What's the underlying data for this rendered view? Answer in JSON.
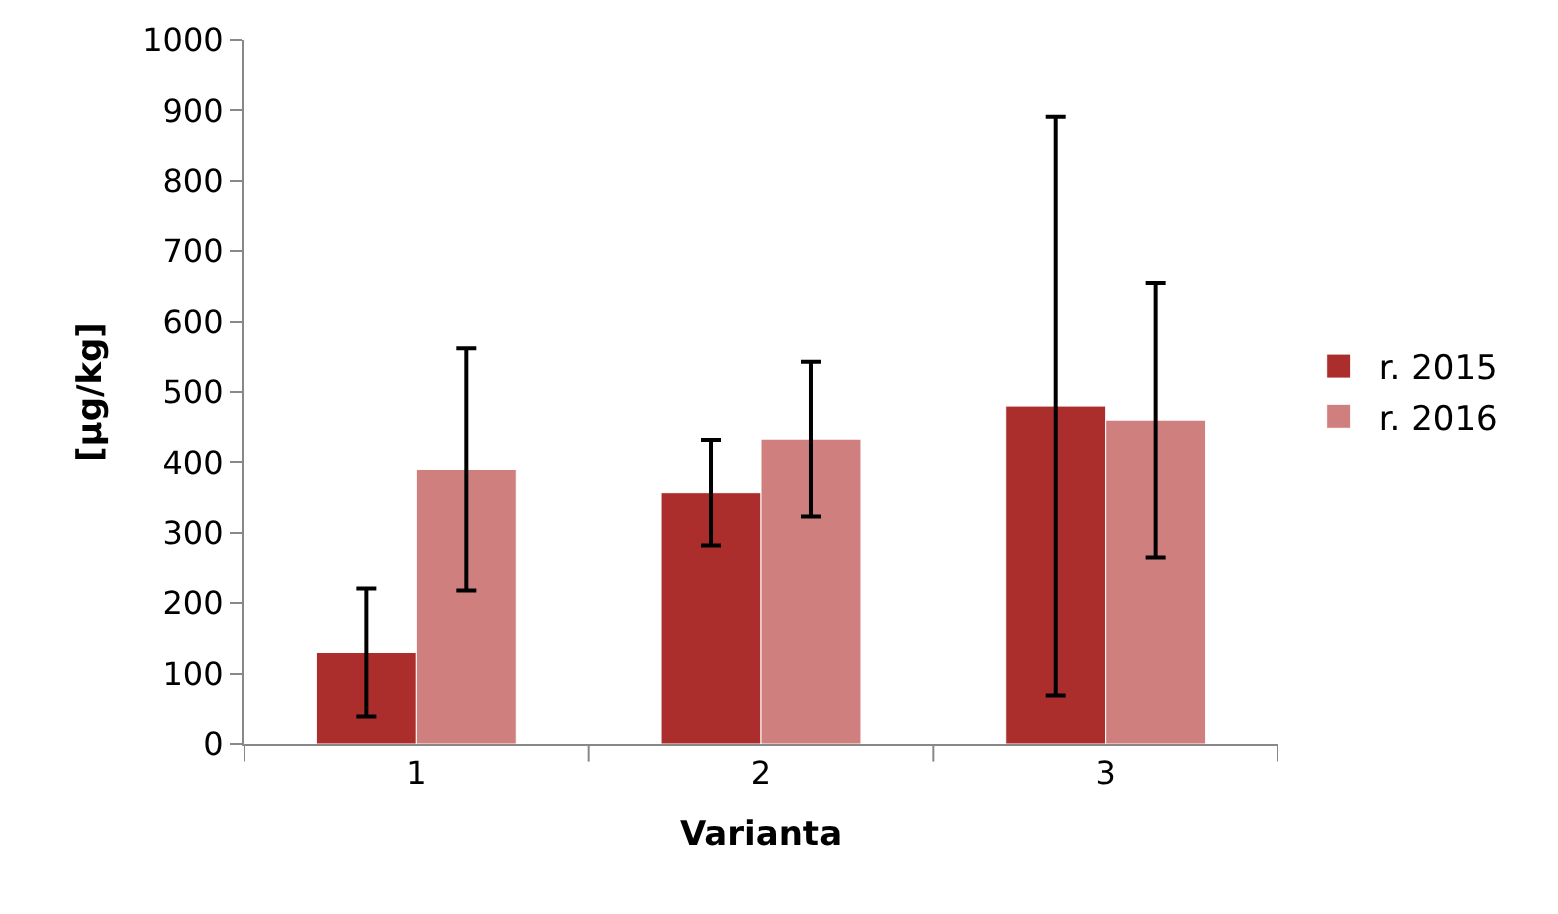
{
  "chart_data": {
    "type": "bar",
    "xlabel": "Varianta",
    "ylabel": "[µg/kg]",
    "categories": [
      "1",
      "2",
      "3"
    ],
    "series": [
      {
        "name": "r. 2015",
        "color": "#ab2e2c",
        "values": [
          130,
          357,
          480
        ],
        "errors": [
          91,
          75,
          411
        ]
      },
      {
        "name": "r. 2016",
        "color": "#cf7f7d",
        "values": [
          390,
          433,
          460
        ],
        "errors": [
          172,
          110,
          195
        ]
      }
    ],
    "ylim": [
      0,
      1000
    ],
    "yticks": [
      0,
      100,
      200,
      300,
      400,
      500,
      600,
      700,
      800,
      900,
      1000
    ],
    "grid": false,
    "legend": "right"
  }
}
